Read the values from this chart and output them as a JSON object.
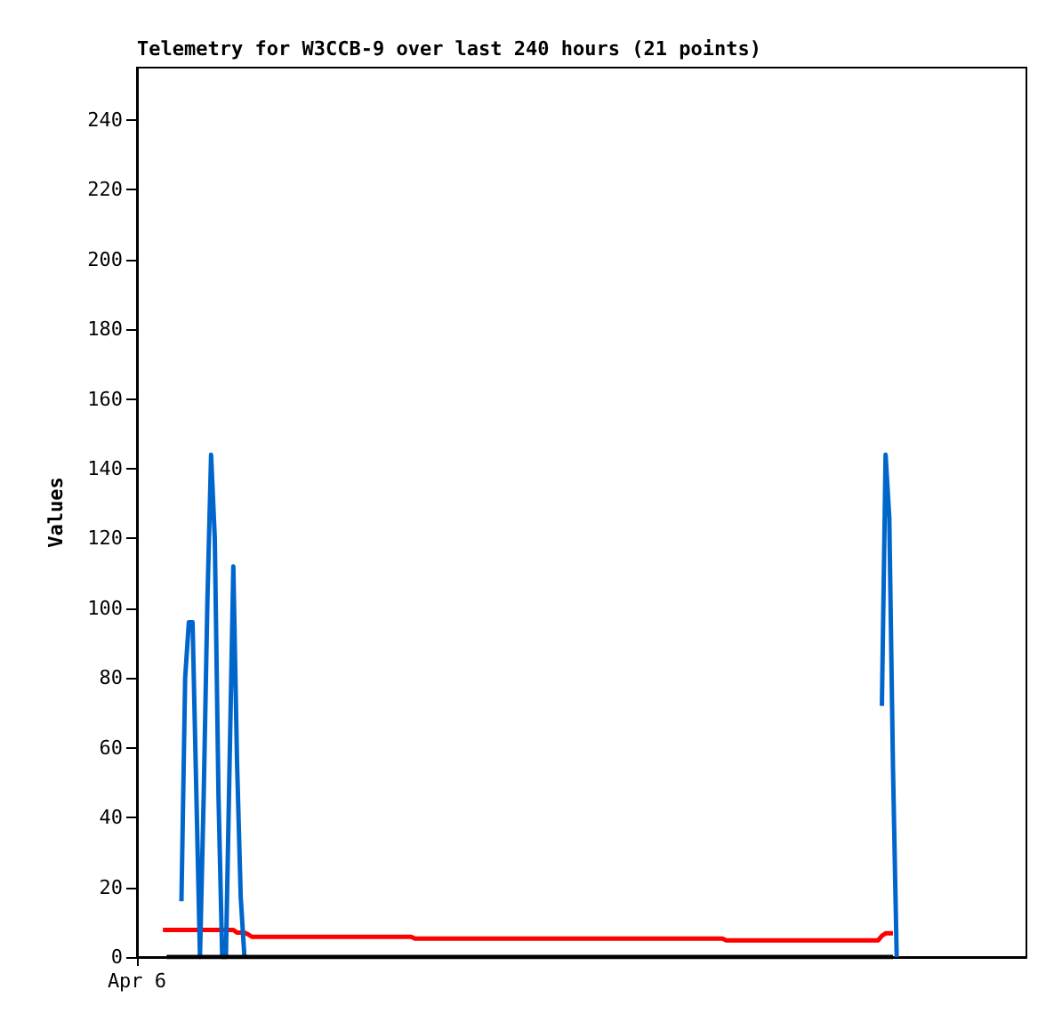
{
  "chart_data": {
    "type": "line",
    "title": "Telemetry for W3CCB-9 over last 240 hours (21 points)",
    "ylabel": "Values",
    "categories": [
      "Apr 6",
      null,
      null,
      null,
      null,
      null,
      null,
      null,
      null,
      null,
      null,
      null,
      null,
      null,
      null,
      null,
      null,
      null,
      null,
      null,
      null,
      null,
      null,
      null,
      null,
      null,
      null,
      null,
      null,
      null,
      null,
      null,
      null,
      null,
      null,
      null,
      null,
      null,
      null,
      null,
      null,
      null,
      null,
      null,
      null,
      null,
      null,
      null,
      null,
      null,
      null,
      null,
      null,
      null,
      null,
      null,
      null,
      null,
      null,
      null,
      null,
      null,
      null,
      null,
      null,
      null,
      null,
      null,
      null,
      null,
      null,
      null,
      null,
      null,
      null,
      null,
      null,
      null,
      null,
      null,
      null,
      null,
      null,
      null,
      null,
      null,
      null,
      null,
      null,
      null,
      null,
      null,
      null,
      null,
      null,
      null,
      null,
      null,
      null,
      null,
      null,
      null,
      null,
      null,
      null,
      null,
      null,
      null,
      null,
      null,
      null,
      null,
      null,
      null,
      null,
      null,
      null,
      null,
      null,
      null,
      null,
      null,
      null,
      null,
      null,
      null,
      null,
      null,
      null,
      null,
      null,
      null,
      null,
      null,
      null,
      null,
      null,
      null,
      null,
      null,
      null,
      null,
      null,
      null,
      null,
      null,
      null,
      null,
      null,
      null,
      null,
      null,
      null,
      null,
      null,
      null,
      null,
      null,
      null,
      null,
      null,
      null,
      null,
      null,
      null,
      null,
      null,
      null,
      null,
      null,
      null,
      null,
      null,
      null,
      null,
      null,
      null,
      null,
      null,
      null,
      null,
      null,
      null,
      null,
      null,
      null,
      null,
      null,
      null,
      null,
      null,
      null,
      null,
      null,
      null,
      null,
      null,
      null,
      null,
      null,
      null,
      null,
      null,
      null,
      null,
      null,
      null,
      null,
      null,
      null,
      null,
      null,
      null,
      null,
      null,
      null,
      null,
      null,
      null,
      null,
      null,
      null,
      null,
      null,
      null,
      null,
      null,
      null,
      null,
      null,
      null,
      null,
      null,
      null,
      null,
      null,
      null,
      null,
      null,
      null,
      null
    ],
    "ylim": [
      0,
      255
    ],
    "yticks": [
      0,
      20,
      40,
      60,
      80,
      100,
      120,
      140,
      160,
      180,
      200,
      220,
      240
    ],
    "marker": "none",
    "line_style": "solid",
    "series": [
      {
        "color": "#ff0000",
        "values": [
          null,
          null,
          null,
          null,
          null,
          null,
          null,
          7.8,
          7.8,
          7.8,
          7.8,
          7.8,
          7.8,
          7.8,
          7.8,
          7.8,
          7.8,
          7.8,
          7.8,
          7.8,
          7.8,
          7.8,
          7.8,
          7.8,
          7.8,
          7.8,
          7.8,
          7.0,
          7.0,
          7.0,
          6.5,
          5.8,
          5.8,
          5.8,
          5.8,
          5.8,
          5.8,
          5.8,
          5.8,
          5.8,
          5.8,
          5.8,
          5.8,
          5.8,
          5.8,
          5.8,
          5.8,
          5.8,
          5.8,
          5.8,
          5.8,
          5.8,
          5.8,
          5.8,
          5.8,
          5.8,
          5.8,
          5.8,
          5.8,
          5.8,
          5.8,
          5.8,
          5.8,
          5.8,
          5.8,
          5.8,
          5.8,
          5.8,
          5.8,
          5.8,
          5.8,
          5.8,
          5.8,
          5.8,
          5.8,
          5.3,
          5.3,
          5.3,
          5.3,
          5.3,
          5.3,
          5.3,
          5.3,
          5.3,
          5.3,
          5.3,
          5.3,
          5.3,
          5.3,
          5.3,
          5.3,
          5.3,
          5.3,
          5.3,
          5.3,
          5.3,
          5.3,
          5.3,
          5.3,
          5.3,
          5.3,
          5.3,
          5.3,
          5.3,
          5.3,
          5.3,
          5.3,
          5.3,
          5.3,
          5.3,
          5.3,
          5.3,
          5.3,
          5.3,
          5.3,
          5.3,
          5.3,
          5.3,
          5.3,
          5.3,
          5.3,
          5.3,
          5.3,
          5.3,
          5.3,
          5.3,
          5.3,
          5.3,
          5.3,
          5.3,
          5.3,
          5.3,
          5.3,
          5.3,
          5.3,
          5.3,
          5.3,
          5.3,
          5.3,
          5.3,
          5.3,
          5.3,
          5.3,
          5.3,
          5.3,
          5.3,
          5.3,
          5.3,
          5.3,
          5.3,
          5.3,
          5.3,
          5.3,
          5.3,
          5.3,
          5.3,
          5.3,
          5.3,
          5.3,
          4.8,
          4.8,
          4.8,
          4.8,
          4.8,
          4.8,
          4.8,
          4.8,
          4.8,
          4.8,
          4.8,
          4.8,
          4.8,
          4.8,
          4.8,
          4.8,
          4.8,
          4.8,
          4.8,
          4.8,
          4.8,
          4.8,
          4.8,
          4.8,
          4.8,
          4.8,
          4.8,
          4.8,
          4.8,
          4.8,
          4.8,
          4.8,
          4.8,
          4.8,
          4.8,
          4.8,
          4.8,
          4.8,
          4.8,
          4.8,
          4.8,
          4.8,
          6.1,
          6.8,
          6.8,
          6.8,
          null,
          null,
          null,
          null,
          null,
          null,
          null,
          null,
          null,
          null,
          null,
          null,
          null,
          null,
          null,
          null,
          null,
          null,
          null,
          null,
          null,
          null,
          null,
          null,
          null,
          null,
          null,
          null,
          null,
          null,
          null,
          null,
          null,
          null,
          null,
          null
        ]
      },
      {
        "color": "#0066cc",
        "values": [
          null,
          null,
          null,
          null,
          null,
          null,
          null,
          null,
          null,
          null,
          null,
          null,
          16,
          80,
          96,
          96,
          48,
          0,
          46,
          102,
          144,
          120,
          46,
          0,
          0,
          56,
          112,
          56,
          17,
          0,
          null,
          null,
          null,
          null,
          null,
          null,
          null,
          null,
          null,
          null,
          null,
          null,
          null,
          null,
          null,
          null,
          null,
          null,
          null,
          null,
          null,
          null,
          null,
          null,
          null,
          null,
          null,
          null,
          null,
          null,
          null,
          null,
          null,
          null,
          null,
          null,
          null,
          null,
          null,
          null,
          null,
          null,
          null,
          null,
          null,
          null,
          null,
          null,
          null,
          null,
          null,
          null,
          null,
          null,
          null,
          null,
          null,
          null,
          null,
          null,
          null,
          null,
          null,
          null,
          null,
          null,
          null,
          null,
          null,
          null,
          null,
          null,
          null,
          null,
          null,
          null,
          null,
          null,
          null,
          null,
          null,
          null,
          null,
          null,
          null,
          null,
          null,
          null,
          null,
          null,
          null,
          null,
          null,
          null,
          null,
          null,
          null,
          null,
          null,
          null,
          null,
          null,
          null,
          null,
          null,
          null,
          null,
          null,
          null,
          null,
          null,
          null,
          null,
          null,
          null,
          null,
          null,
          null,
          null,
          null,
          null,
          null,
          null,
          null,
          null,
          null,
          null,
          null,
          null,
          null,
          null,
          null,
          null,
          null,
          null,
          null,
          null,
          null,
          null,
          null,
          null,
          null,
          null,
          null,
          null,
          null,
          null,
          null,
          null,
          null,
          null,
          null,
          null,
          null,
          null,
          null,
          null,
          null,
          null,
          null,
          null,
          null,
          null,
          null,
          null,
          null,
          null,
          null,
          null,
          null,
          null,
          72,
          144,
          126,
          54,
          0,
          null,
          null,
          null,
          null,
          null,
          null,
          null,
          null,
          null,
          null,
          null,
          null,
          null,
          null,
          null,
          null,
          null,
          null,
          null,
          null,
          null,
          null,
          null,
          null,
          null,
          null,
          null,
          null,
          null,
          null,
          null,
          null,
          null,
          null,
          null
        ]
      },
      {
        "color": "#000000",
        "values": [
          null,
          null,
          null,
          null,
          null,
          null,
          null,
          null,
          0,
          0,
          0,
          0,
          0,
          0,
          0,
          0,
          0,
          0,
          0,
          0,
          0,
          0,
          0,
          0,
          0,
          0,
          0,
          0,
          0,
          0,
          0,
          0,
          0,
          0,
          0,
          0,
          0,
          0,
          0,
          0,
          0,
          0,
          0,
          0,
          0,
          0,
          0,
          0,
          0,
          0,
          0,
          0,
          0,
          0,
          0,
          0,
          0,
          0,
          0,
          0,
          0,
          0,
          0,
          0,
          0,
          0,
          0,
          0,
          0,
          0,
          0,
          0,
          0,
          0,
          0,
          0,
          0,
          0,
          0,
          0,
          0,
          0,
          0,
          0,
          0,
          0,
          0,
          0,
          0,
          0,
          0,
          0,
          0,
          0,
          0,
          0,
          0,
          0,
          0,
          0,
          0,
          0,
          0,
          0,
          0,
          0,
          0,
          0,
          0,
          0,
          0,
          0,
          0,
          0,
          0,
          0,
          0,
          0,
          0,
          0,
          0,
          0,
          0,
          0,
          0,
          0,
          0,
          0,
          0,
          0,
          0,
          0,
          0,
          0,
          0,
          0,
          0,
          0,
          0,
          0,
          0,
          0,
          0,
          0,
          0,
          0,
          0,
          0,
          0,
          0,
          0,
          0,
          0,
          0,
          0,
          0,
          0,
          0,
          0,
          0,
          0,
          0,
          0,
          0,
          0,
          0,
          0,
          0,
          0,
          0,
          0,
          0,
          0,
          0,
          0,
          0,
          0,
          0,
          0,
          0,
          0,
          0,
          0,
          0,
          0,
          0,
          0,
          0,
          0,
          0,
          0,
          0,
          0,
          0,
          0,
          0,
          0,
          0,
          0,
          0,
          0,
          0,
          0,
          0,
          0,
          null,
          null,
          null,
          null,
          null,
          null,
          null,
          null,
          null,
          null,
          null,
          null,
          null,
          null,
          null,
          null,
          null,
          null,
          null,
          null,
          null,
          null,
          null,
          null,
          null,
          null,
          null,
          null,
          null,
          null,
          null,
          null,
          null,
          null,
          null,
          null
        ]
      }
    ]
  }
}
